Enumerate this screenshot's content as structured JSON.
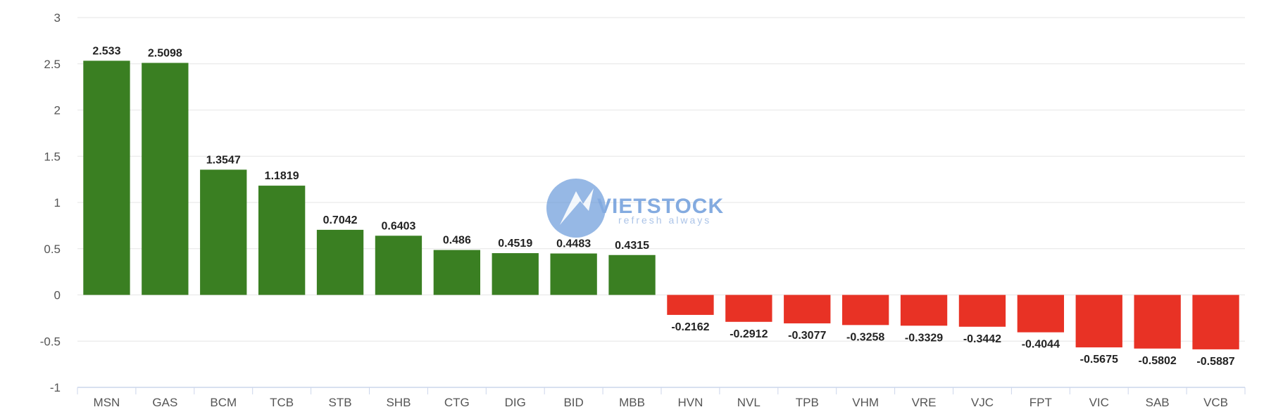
{
  "chart_data": {
    "type": "bar",
    "categories": [
      "MSN",
      "GAS",
      "BCM",
      "TCB",
      "STB",
      "SHB",
      "CTG",
      "DIG",
      "BID",
      "MBB",
      "HVN",
      "NVL",
      "TPB",
      "VHM",
      "VRE",
      "VJC",
      "FPT",
      "VIC",
      "SAB",
      "VCB"
    ],
    "values": [
      2.533,
      2.5098,
      1.3547,
      1.1819,
      0.7042,
      0.6403,
      0.486,
      0.4519,
      0.4483,
      0.4315,
      -0.2162,
      -0.2912,
      -0.3077,
      -0.3258,
      -0.3329,
      -0.3442,
      -0.4044,
      -0.5675,
      -0.5802,
      -0.5887
    ],
    "data_labels": [
      "2.533",
      "2.5098",
      "1.3547",
      "1.1819",
      "0.7042",
      "0.6403",
      "0.486",
      "0.4519",
      "0.4483",
      "0.4315",
      "-0.2162",
      "-0.2912",
      "-0.3077",
      "-0.3258",
      "-0.3329",
      "-0.3442",
      "-0.4044",
      "-0.5675",
      "-0.5802",
      "-0.5887"
    ],
    "y_ticks": [
      "-1",
      "-0.5",
      "0",
      "0.5",
      "1",
      "1.5",
      "2",
      "2.5",
      "3"
    ],
    "ylim": [
      -1,
      3
    ],
    "title": "",
    "xlabel": "",
    "ylabel": "",
    "grid": true,
    "colors": {
      "positive": "#3a7f22",
      "negative": "#e83225",
      "grid": "#e6e6e6",
      "axis": "#ccd6eb"
    }
  },
  "watermark": {
    "brand_text": "VIETSTOCK",
    "tagline": "refresh always",
    "color": "#5b8fd6"
  }
}
